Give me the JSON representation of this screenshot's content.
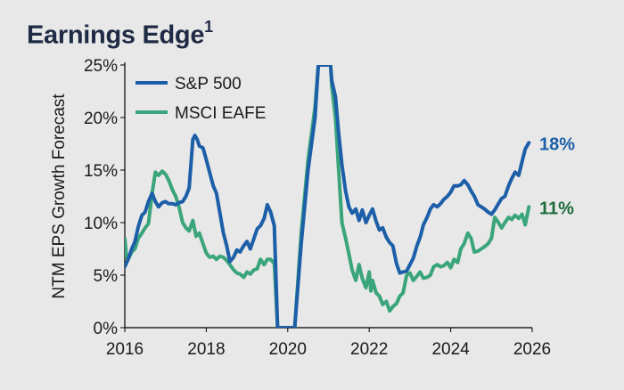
{
  "title": "Earnings Edge",
  "title_superscript": "1",
  "colors": {
    "sp500": "#1c5fa8",
    "eafe": "#3aa57a",
    "sp500_label": "#1c5fa8",
    "eafe_label": "#1e6b3d",
    "axis": "#000000"
  },
  "chart_data": {
    "type": "line",
    "title": "Earnings Edge",
    "xlabel": "",
    "ylabel": "NTM EPS Growth Forecast",
    "xlim": [
      2016,
      2026
    ],
    "ylim": [
      0,
      25
    ],
    "x_ticks": [
      "2016",
      "2018",
      "2020",
      "2022",
      "2024",
      "2026"
    ],
    "y_ticks": [
      "0%",
      "5%",
      "10%",
      "15%",
      "20%",
      "25%"
    ],
    "legend_position": "top-left",
    "grid": false,
    "end_labels": [
      "18%",
      "11%"
    ],
    "series": [
      {
        "name": "S&P 500",
        "points": [
          [
            2016.0,
            5.8
          ],
          [
            2016.08,
            6.5
          ],
          [
            2016.17,
            7.5
          ],
          [
            2016.25,
            8.2
          ],
          [
            2016.33,
            9.6
          ],
          [
            2016.42,
            10.7
          ],
          [
            2016.5,
            11.0
          ],
          [
            2016.58,
            12.0
          ],
          [
            2016.67,
            12.8
          ],
          [
            2016.75,
            12.0
          ],
          [
            2016.83,
            11.5
          ],
          [
            2016.92,
            11.9
          ],
          [
            2017.0,
            12.0
          ],
          [
            2017.08,
            11.8
          ],
          [
            2017.17,
            11.8
          ],
          [
            2017.25,
            11.7
          ],
          [
            2017.33,
            11.9
          ],
          [
            2017.42,
            12.0
          ],
          [
            2017.5,
            12.5
          ],
          [
            2017.58,
            13.3
          ],
          [
            2017.67,
            17.9
          ],
          [
            2017.72,
            18.3
          ],
          [
            2017.78,
            17.9
          ],
          [
            2017.83,
            17.3
          ],
          [
            2017.92,
            17.1
          ],
          [
            2018.0,
            16.0
          ],
          [
            2018.08,
            14.8
          ],
          [
            2018.17,
            13.5
          ],
          [
            2018.25,
            12.8
          ],
          [
            2018.33,
            11.0
          ],
          [
            2018.42,
            9.0
          ],
          [
            2018.5,
            7.8
          ],
          [
            2018.58,
            6.3
          ],
          [
            2018.67,
            6.7
          ],
          [
            2018.75,
            7.4
          ],
          [
            2018.83,
            7.2
          ],
          [
            2018.92,
            7.8
          ],
          [
            2019.0,
            8.2
          ],
          [
            2019.08,
            7.5
          ],
          [
            2019.17,
            8.5
          ],
          [
            2019.25,
            9.4
          ],
          [
            2019.33,
            9.7
          ],
          [
            2019.42,
            10.4
          ],
          [
            2019.5,
            11.7
          ],
          [
            2019.58,
            11.0
          ],
          [
            2019.67,
            9.7
          ],
          [
            2019.75,
            0
          ],
          [
            2020.17,
            0
          ],
          [
            2020.33,
            8.0
          ],
          [
            2020.5,
            15.0
          ],
          [
            2020.67,
            20.0
          ],
          [
            2020.75,
            25.0
          ],
          [
            2021.05,
            25.0
          ],
          [
            2021.08,
            23.5
          ],
          [
            2021.17,
            22.0
          ],
          [
            2021.25,
            18.5
          ],
          [
            2021.33,
            15.5
          ],
          [
            2021.42,
            13.0
          ],
          [
            2021.5,
            11.5
          ],
          [
            2021.58,
            10.9
          ],
          [
            2021.67,
            11.3
          ],
          [
            2021.75,
            10.2
          ],
          [
            2021.83,
            11.2
          ],
          [
            2021.92,
            10.0
          ],
          [
            2022.0,
            10.7
          ],
          [
            2022.08,
            11.3
          ],
          [
            2022.17,
            10.1
          ],
          [
            2022.25,
            9.3
          ],
          [
            2022.33,
            9.5
          ],
          [
            2022.42,
            8.6
          ],
          [
            2022.5,
            8.1
          ],
          [
            2022.58,
            7.8
          ],
          [
            2022.67,
            6.1
          ],
          [
            2022.75,
            5.2
          ],
          [
            2022.83,
            5.3
          ],
          [
            2022.92,
            5.4
          ],
          [
            2023.0,
            6.0
          ],
          [
            2023.08,
            6.6
          ],
          [
            2023.17,
            7.8
          ],
          [
            2023.25,
            8.6
          ],
          [
            2023.33,
            9.8
          ],
          [
            2023.42,
            10.5
          ],
          [
            2023.5,
            11.3
          ],
          [
            2023.58,
            11.7
          ],
          [
            2023.67,
            11.5
          ],
          [
            2023.75,
            11.8
          ],
          [
            2023.83,
            12.2
          ],
          [
            2023.92,
            12.5
          ],
          [
            2024.0,
            12.9
          ],
          [
            2024.08,
            13.5
          ],
          [
            2024.17,
            13.5
          ],
          [
            2024.25,
            13.6
          ],
          [
            2024.33,
            14.0
          ],
          [
            2024.42,
            13.6
          ],
          [
            2024.5,
            13.0
          ],
          [
            2024.58,
            12.5
          ],
          [
            2024.67,
            11.7
          ],
          [
            2024.75,
            11.5
          ],
          [
            2024.83,
            11.3
          ],
          [
            2024.92,
            11.0
          ],
          [
            2025.0,
            10.8
          ],
          [
            2025.08,
            11.2
          ],
          [
            2025.17,
            11.8
          ],
          [
            2025.25,
            12.3
          ],
          [
            2025.33,
            12.5
          ],
          [
            2025.42,
            13.5
          ],
          [
            2025.5,
            14.2
          ],
          [
            2025.58,
            14.8
          ],
          [
            2025.67,
            14.5
          ],
          [
            2025.75,
            15.8
          ],
          [
            2025.83,
            17.0
          ],
          [
            2025.92,
            17.6
          ]
        ]
      },
      {
        "name": "MSCI EAFE",
        "points": [
          [
            2016.0,
            8.5
          ],
          [
            2016.04,
            6.8
          ],
          [
            2016.08,
            6.5
          ],
          [
            2016.17,
            7.2
          ],
          [
            2016.25,
            7.5
          ],
          [
            2016.33,
            8.5
          ],
          [
            2016.42,
            9.0
          ],
          [
            2016.5,
            9.5
          ],
          [
            2016.58,
            9.9
          ],
          [
            2016.67,
            12.8
          ],
          [
            2016.75,
            14.8
          ],
          [
            2016.83,
            14.5
          ],
          [
            2016.92,
            14.9
          ],
          [
            2017.0,
            14.6
          ],
          [
            2017.08,
            14.0
          ],
          [
            2017.17,
            13.1
          ],
          [
            2017.25,
            12.5
          ],
          [
            2017.33,
            11.5
          ],
          [
            2017.42,
            10.0
          ],
          [
            2017.5,
            9.5
          ],
          [
            2017.58,
            9.2
          ],
          [
            2017.67,
            10.2
          ],
          [
            2017.75,
            8.7
          ],
          [
            2017.83,
            9.0
          ],
          [
            2017.92,
            8.0
          ],
          [
            2018.0,
            7.1
          ],
          [
            2018.08,
            6.7
          ],
          [
            2018.17,
            6.8
          ],
          [
            2018.25,
            6.5
          ],
          [
            2018.33,
            6.8
          ],
          [
            2018.42,
            6.7
          ],
          [
            2018.5,
            6.4
          ],
          [
            2018.58,
            6.0
          ],
          [
            2018.67,
            5.5
          ],
          [
            2018.75,
            5.2
          ],
          [
            2018.83,
            5.1
          ],
          [
            2018.92,
            4.8
          ],
          [
            2019.0,
            5.3
          ],
          [
            2019.08,
            5.1
          ],
          [
            2019.17,
            5.5
          ],
          [
            2019.25,
            5.6
          ],
          [
            2019.33,
            6.5
          ],
          [
            2019.42,
            6.0
          ],
          [
            2019.5,
            6.5
          ],
          [
            2019.58,
            6.5
          ],
          [
            2019.67,
            6.1
          ],
          [
            2019.75,
            0
          ],
          [
            2020.17,
            0
          ],
          [
            2020.33,
            9.0
          ],
          [
            2020.5,
            16.0
          ],
          [
            2020.67,
            21.0
          ],
          [
            2020.75,
            25.0
          ],
          [
            2021.05,
            25.0
          ],
          [
            2021.08,
            23.0
          ],
          [
            2021.17,
            20.0
          ],
          [
            2021.25,
            15.0
          ],
          [
            2021.33,
            10.0
          ],
          [
            2021.42,
            8.5
          ],
          [
            2021.5,
            7.0
          ],
          [
            2021.58,
            5.5
          ],
          [
            2021.67,
            4.5
          ],
          [
            2021.75,
            6.0
          ],
          [
            2021.83,
            4.7
          ],
          [
            2021.92,
            3.8
          ],
          [
            2022.0,
            5.3
          ],
          [
            2022.04,
            3.5
          ],
          [
            2022.08,
            4.5
          ],
          [
            2022.17,
            3.3
          ],
          [
            2022.25,
            3.0
          ],
          [
            2022.33,
            2.2
          ],
          [
            2022.42,
            2.5
          ],
          [
            2022.5,
            1.6
          ],
          [
            2022.58,
            2.0
          ],
          [
            2022.67,
            2.3
          ],
          [
            2022.75,
            3.0
          ],
          [
            2022.83,
            3.3
          ],
          [
            2022.92,
            5.0
          ],
          [
            2023.0,
            5.2
          ],
          [
            2023.08,
            4.5
          ],
          [
            2023.17,
            4.9
          ],
          [
            2023.25,
            5.3
          ],
          [
            2023.33,
            4.7
          ],
          [
            2023.42,
            4.8
          ],
          [
            2023.5,
            5.0
          ],
          [
            2023.58,
            5.8
          ],
          [
            2023.67,
            6.0
          ],
          [
            2023.75,
            5.8
          ],
          [
            2023.83,
            5.9
          ],
          [
            2023.92,
            6.2
          ],
          [
            2024.0,
            5.7
          ],
          [
            2024.08,
            6.5
          ],
          [
            2024.17,
            6.2
          ],
          [
            2024.25,
            7.5
          ],
          [
            2024.33,
            8.0
          ],
          [
            2024.42,
            9.0
          ],
          [
            2024.5,
            8.5
          ],
          [
            2024.58,
            7.2
          ],
          [
            2024.67,
            7.3
          ],
          [
            2024.75,
            7.5
          ],
          [
            2024.83,
            7.7
          ],
          [
            2024.92,
            8.0
          ],
          [
            2025.0,
            8.5
          ],
          [
            2025.08,
            10.5
          ],
          [
            2025.17,
            10.0
          ],
          [
            2025.25,
            9.5
          ],
          [
            2025.33,
            10.0
          ],
          [
            2025.42,
            10.5
          ],
          [
            2025.5,
            10.3
          ],
          [
            2025.58,
            10.7
          ],
          [
            2025.67,
            10.4
          ],
          [
            2025.75,
            10.8
          ],
          [
            2025.83,
            9.8
          ],
          [
            2025.92,
            11.5
          ]
        ]
      }
    ]
  }
}
